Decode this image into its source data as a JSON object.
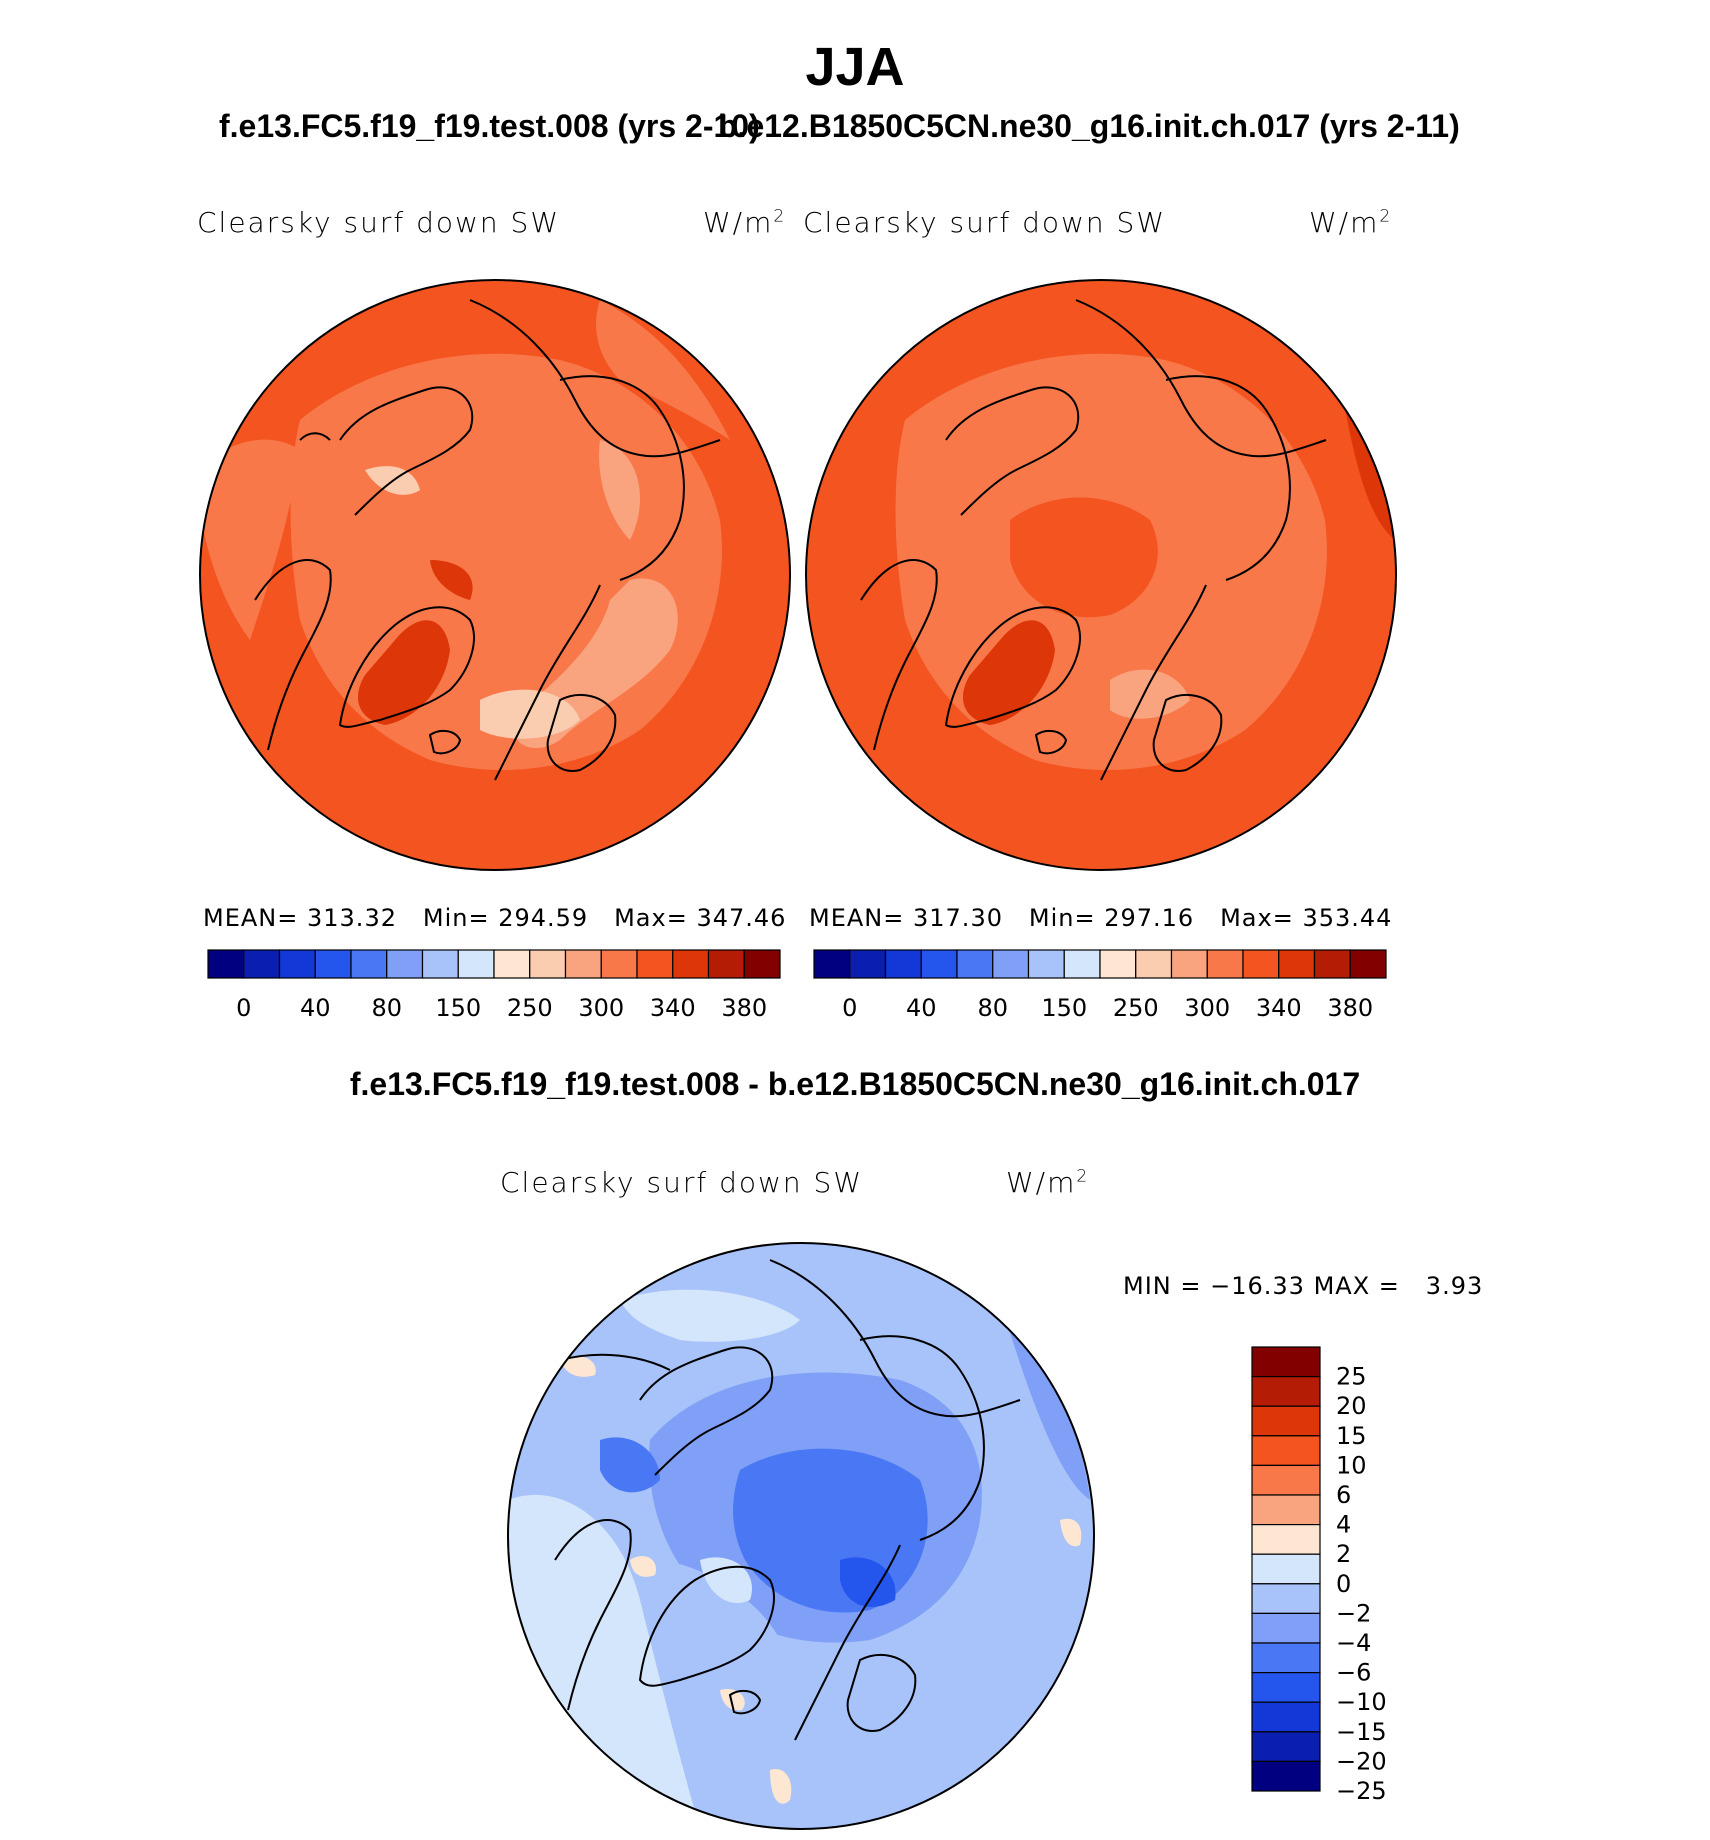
{
  "title": "JJA",
  "case1_title": "f.e13.FC5.f19_f19.test.008 (yrs 2-10)",
  "case2_title": "b.e12.B1850C5CN.ne30_g16.init.ch.017 (yrs 2-11)",
  "diff_title": "f.e13.FC5.f19_f19.test.008 - b.e12.B1850C5CN.ne30_g16.init.ch.017",
  "colors": {
    "sequential": [
      "#000080",
      "#0a1fb0",
      "#1238d8",
      "#2456ee",
      "#4a78f4",
      "#7fa0f6",
      "#a8c2fa",
      "#d4e6fb",
      "#fde6d2",
      "#fbcdb0",
      "#f9a47e",
      "#f9784a",
      "#f35420",
      "#dd3608",
      "#b41c06",
      "#820000"
    ],
    "diverging": [
      "#000080",
      "#0a1fb0",
      "#1238d8",
      "#2456ee",
      "#4a78f4",
      "#7fa0f6",
      "#a8c2fa",
      "#d4e6fb",
      "#fde6d2",
      "#f9a47e",
      "#f9784a",
      "#f35420",
      "#dd3608",
      "#b41c06",
      "#820000"
    ]
  },
  "chart_data": [
    {
      "type": "map",
      "projection": "north polar stereographic",
      "case": "f.e13.FC5.f19_f19.test.008 (yrs 2-10)",
      "variable": "Clearsky surf down SW",
      "units": "W/m",
      "units_exp": "2",
      "stats": {
        "mean_label": "MEAN=",
        "mean": "313.32",
        "min_label": "Min=",
        "min": "294.59",
        "max_label": "Max=",
        "max": "347.46"
      },
      "colorbar": {
        "ticks": [
          "0",
          "40",
          "80",
          "150",
          "250",
          "300",
          "340",
          "380"
        ]
      }
    },
    {
      "type": "map",
      "projection": "north polar stereographic",
      "case": "b.e12.B1850C5CN.ne30_g16.init.ch.017 (yrs 2-11)",
      "variable": "Clearsky surf down SW",
      "units": "W/m",
      "units_exp": "2",
      "stats": {
        "mean_label": "MEAN=",
        "mean": "317.30",
        "min_label": "Min=",
        "min": "297.16",
        "max_label": "Max=",
        "max": "353.44"
      },
      "colorbar": {
        "ticks": [
          "0",
          "40",
          "80",
          "150",
          "250",
          "300",
          "340",
          "380"
        ]
      }
    },
    {
      "type": "map",
      "projection": "north polar stereographic",
      "case": "f.e13.FC5.f19_f19.test.008 - b.e12.B1850C5CN.ne30_g16.init.ch.017",
      "variable": "Clearsky surf down SW",
      "units": "W/m",
      "units_exp": "2",
      "stats": {
        "min_label": "MIN =",
        "min": "−16.33",
        "max_label": "MAX =",
        "max": "3.93"
      },
      "colorbar": {
        "ticks": [
          "25",
          "20",
          "15",
          "10",
          "6",
          "4",
          "2",
          "0",
          "−2",
          "−4",
          "−6",
          "−10",
          "−15",
          "−20",
          "−25"
        ]
      }
    }
  ]
}
